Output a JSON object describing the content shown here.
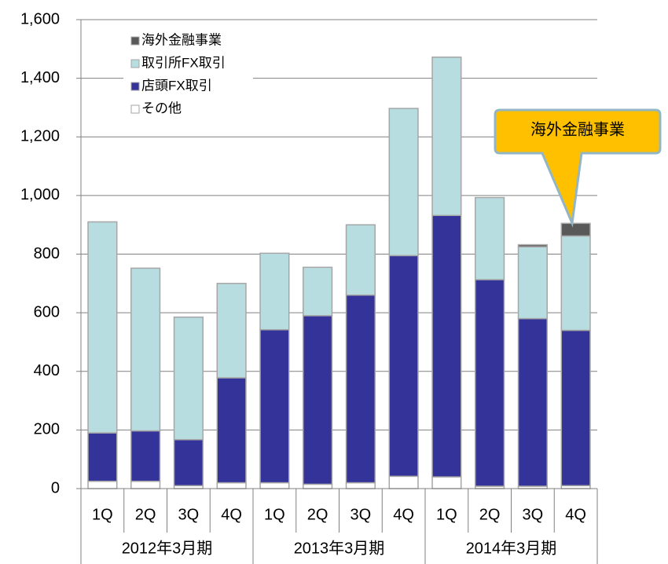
{
  "chart_data": {
    "type": "stacked_bar",
    "categories": [
      "1Q",
      "2Q",
      "3Q",
      "4Q",
      "1Q",
      "2Q",
      "3Q",
      "4Q",
      "1Q",
      "2Q",
      "3Q",
      "4Q"
    ],
    "groups": [
      "2012年3月期",
      "2013年3月期",
      "2014年3月期"
    ],
    "series": [
      {
        "name": "その他",
        "color": "#ffffff",
        "values": [
          25,
          25,
          10,
          20,
          20,
          15,
          20,
          42,
          40,
          8,
          8,
          10
        ]
      },
      {
        "name": "店頭FX取引",
        "color": "#333399",
        "values": [
          165,
          172,
          157,
          358,
          522,
          575,
          640,
          753,
          892,
          705,
          572,
          530
        ]
      },
      {
        "name": "取引所FX取引",
        "color": "#b7dde1",
        "values": [
          720,
          555,
          418,
          322,
          261,
          165,
          240,
          502,
          540,
          280,
          245,
          322
        ]
      },
      {
        "name": "海外金融事業",
        "color": "#595959",
        "values": [
          null,
          null,
          null,
          null,
          null,
          null,
          null,
          null,
          null,
          null,
          7,
          43
        ]
      }
    ],
    "annotation": "海外金融事業",
    "ylim": [
      0,
      1600
    ],
    "yticks": [
      0,
      {
        "value": 200,
        "label": "200"
      },
      {
        "value": 400,
        "label": "400"
      },
      {
        "value": 600,
        "label": "600"
      },
      {
        "value": 800,
        "label": "800"
      },
      {
        "value": 1000,
        "label": "1,000"
      },
      {
        "value": 1200,
        "label": "1,200"
      },
      {
        "value": 1400,
        "label": "1,400"
      },
      {
        "value": 1600,
        "label": "1,600"
      }
    ],
    "grid": true,
    "legend": "top-left"
  }
}
